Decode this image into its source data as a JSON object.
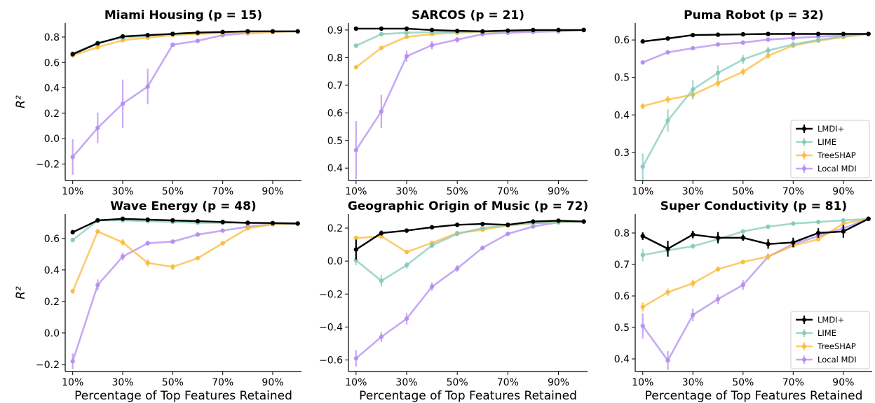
{
  "chart_data": [
    {
      "type": "line",
      "title": "Miami Housing (p = 15)",
      "ylabel": "R²",
      "xlabel": "",
      "x": [
        10,
        20,
        30,
        40,
        50,
        60,
        70,
        80,
        90,
        100
      ],
      "xticks": [
        "10%",
        "30%",
        "50%",
        "70%",
        "90%"
      ],
      "yticks": [
        "−0.2",
        "0.0",
        "0.2",
        "0.4",
        "0.6",
        "0.8"
      ],
      "ylim": [
        -0.33,
        0.91
      ],
      "legend": false,
      "series": [
        {
          "name": "LMDI+",
          "color": "#000000",
          "values": [
            0.665,
            0.75,
            0.805,
            0.815,
            0.825,
            0.835,
            0.84,
            0.845,
            0.845,
            0.845
          ],
          "err": [
            0.01,
            0.01,
            0.01,
            0.01,
            0.01,
            0.005,
            0.005,
            0.005,
            0.005,
            0.005
          ]
        },
        {
          "name": "LIME",
          "color": "#85c9bc",
          "values": [
            0.67,
            0.755,
            0.795,
            0.81,
            0.825,
            0.835,
            0.84,
            0.845,
            0.845,
            0.845
          ],
          "err": [
            0.01,
            0.01,
            0.01,
            0.01,
            0.005,
            0.005,
            0.005,
            0.005,
            0.005,
            0.005
          ]
        },
        {
          "name": "TreeSHAP",
          "color": "#fbbb3a",
          "values": [
            0.655,
            0.72,
            0.775,
            0.795,
            0.815,
            0.825,
            0.83,
            0.835,
            0.84,
            0.845
          ],
          "err": [
            0.01,
            0.01,
            0.01,
            0.01,
            0.01,
            0.005,
            0.005,
            0.005,
            0.005,
            0.005
          ]
        },
        {
          "name": "Local MDI",
          "color": "#b48cf2",
          "values": [
            -0.145,
            0.085,
            0.275,
            0.41,
            0.74,
            0.77,
            0.815,
            0.83,
            0.84,
            0.845
          ],
          "err": [
            0.14,
            0.12,
            0.19,
            0.14,
            0.01,
            0.01,
            0.01,
            0.005,
            0.005,
            0.005
          ]
        }
      ]
    },
    {
      "type": "line",
      "title": "SARCOS (p = 21)",
      "ylabel": "",
      "xlabel": "",
      "x": [
        10,
        20,
        30,
        40,
        50,
        60,
        70,
        80,
        90,
        100
      ],
      "xticks": [
        "10%",
        "30%",
        "50%",
        "70%",
        "90%"
      ],
      "yticks": [
        "0.4",
        "0.5",
        "0.6",
        "0.7",
        "0.8",
        "0.9"
      ],
      "ylim": [
        0.355,
        0.925
      ],
      "legend": false,
      "series": [
        {
          "name": "LMDI+",
          "color": "#000000",
          "values": [
            0.905,
            0.905,
            0.905,
            0.9,
            0.897,
            0.895,
            0.898,
            0.9,
            0.9,
            0.9
          ],
          "err": [
            0.003,
            0.003,
            0.003,
            0.003,
            0.003,
            0.003,
            0.003,
            0.003,
            0.003,
            0.003
          ]
        },
        {
          "name": "LIME",
          "color": "#85c9bc",
          "values": [
            0.843,
            0.885,
            0.89,
            0.892,
            0.893,
            0.894,
            0.895,
            0.897,
            0.898,
            0.9
          ],
          "err": [
            0.005,
            0.005,
            0.005,
            0.005,
            0.005,
            0.005,
            0.005,
            0.005,
            0.005,
            0.005
          ]
        },
        {
          "name": "TreeSHAP",
          "color": "#fbbb3a",
          "values": [
            0.765,
            0.835,
            0.875,
            0.885,
            0.89,
            0.893,
            0.895,
            0.897,
            0.898,
            0.9
          ],
          "err": [
            0.006,
            0.006,
            0.006,
            0.005,
            0.005,
            0.005,
            0.005,
            0.005,
            0.005,
            0.005
          ]
        },
        {
          "name": "Local MDI",
          "color": "#b48cf2",
          "values": [
            0.465,
            0.605,
            0.805,
            0.845,
            0.865,
            0.885,
            0.89,
            0.893,
            0.895,
            0.9
          ],
          "err": [
            0.105,
            0.06,
            0.02,
            0.015,
            0.01,
            0.008,
            0.005,
            0.005,
            0.005,
            0.005
          ]
        }
      ]
    },
    {
      "type": "line",
      "title": "Puma Robot (p = 32)",
      "ylabel": "",
      "xlabel": "",
      "x": [
        10,
        20,
        30,
        40,
        50,
        60,
        70,
        80,
        90,
        100
      ],
      "xticks": [
        "10%",
        "30%",
        "50%",
        "70%",
        "90%"
      ],
      "yticks": [
        "0.3",
        "0.4",
        "0.5",
        "0.6"
      ],
      "ylim": [
        0.225,
        0.645
      ],
      "legend": true,
      "series": [
        {
          "name": "LMDI+",
          "color": "#000000",
          "values": [
            0.596,
            0.604,
            0.613,
            0.614,
            0.615,
            0.616,
            0.616,
            0.616,
            0.616,
            0.616
          ],
          "err": [
            0.004,
            0.004,
            0.003,
            0.003,
            0.003,
            0.003,
            0.003,
            0.003,
            0.003,
            0.003
          ]
        },
        {
          "name": "LIME",
          "color": "#85c9bc",
          "values": [
            0.262,
            0.385,
            0.468,
            0.512,
            0.548,
            0.572,
            0.588,
            0.6,
            0.61,
            0.616
          ],
          "err": [
            0.035,
            0.03,
            0.025,
            0.02,
            0.012,
            0.01,
            0.008,
            0.006,
            0.005,
            0.003
          ]
        },
        {
          "name": "TreeSHAP",
          "color": "#fbbb3a",
          "values": [
            0.423,
            0.441,
            0.454,
            0.485,
            0.515,
            0.558,
            0.585,
            0.598,
            0.608,
            0.616
          ],
          "err": [
            0.008,
            0.01,
            0.012,
            0.01,
            0.01,
            0.008,
            0.006,
            0.005,
            0.004,
            0.003
          ]
        },
        {
          "name": "Local MDI",
          "color": "#b48cf2",
          "values": [
            0.54,
            0.567,
            0.578,
            0.588,
            0.593,
            0.601,
            0.605,
            0.609,
            0.612,
            0.616
          ],
          "err": [
            0.005,
            0.005,
            0.005,
            0.005,
            0.005,
            0.004,
            0.004,
            0.004,
            0.003,
            0.003
          ]
        }
      ]
    },
    {
      "type": "line",
      "title": "Wave Energy (p = 48)",
      "ylabel": "R²",
      "xlabel": "Percentage of Top Features Retained",
      "x": [
        10,
        20,
        30,
        40,
        50,
        60,
        70,
        80,
        90,
        100
      ],
      "xticks": [
        "10%",
        "30%",
        "50%",
        "70%",
        "90%"
      ],
      "yticks": [
        "−0.2",
        "0.0",
        "0.2",
        "0.4",
        "0.6"
      ],
      "ylim": [
        -0.245,
        0.755
      ],
      "legend": false,
      "series": [
        {
          "name": "LMDI+",
          "color": "#000000",
          "values": [
            0.64,
            0.715,
            0.725,
            0.72,
            0.715,
            0.71,
            0.705,
            0.7,
            0.698,
            0.695
          ],
          "err": [
            0.005,
            0.005,
            0.005,
            0.005,
            0.005,
            0.005,
            0.005,
            0.005,
            0.005,
            0.005
          ]
        },
        {
          "name": "LIME",
          "color": "#85c9bc",
          "values": [
            0.59,
            0.715,
            0.715,
            0.71,
            0.705,
            0.7,
            0.7,
            0.698,
            0.696,
            0.695
          ],
          "err": [
            0.01,
            0.01,
            0.008,
            0.008,
            0.006,
            0.005,
            0.005,
            0.005,
            0.005,
            0.005
          ]
        },
        {
          "name": "TreeSHAP",
          "color": "#fbbb3a",
          "values": [
            0.265,
            0.645,
            0.575,
            0.445,
            0.42,
            0.475,
            0.57,
            0.665,
            0.69,
            0.695
          ],
          "err": [
            0.015,
            0.01,
            0.02,
            0.025,
            0.02,
            0.01,
            0.01,
            0.008,
            0.005,
            0.005
          ]
        },
        {
          "name": "Local MDI",
          "color": "#b48cf2",
          "values": [
            -0.18,
            0.305,
            0.485,
            0.57,
            0.58,
            0.625,
            0.65,
            0.675,
            0.69,
            0.695
          ],
          "err": [
            0.05,
            0.035,
            0.025,
            0.015,
            0.01,
            0.01,
            0.008,
            0.005,
            0.005,
            0.005
          ]
        }
      ]
    },
    {
      "type": "line",
      "title": "Geographic Origin of Music (p = 72)",
      "ylabel": "",
      "xlabel": "Percentage of Top Features Retained",
      "x": [
        10,
        20,
        30,
        40,
        50,
        60,
        70,
        80,
        90,
        100
      ],
      "xticks": [
        "10%",
        "30%",
        "50%",
        "70%",
        "90%"
      ],
      "yticks": [
        "−0.6",
        "−0.4",
        "−0.2",
        "0.0",
        "0.2"
      ],
      "ylim": [
        -0.67,
        0.285
      ],
      "legend": false,
      "series": [
        {
          "name": "LMDI+",
          "color": "#000000",
          "values": [
            0.07,
            0.17,
            0.185,
            0.205,
            0.22,
            0.225,
            0.22,
            0.24,
            0.245,
            0.24
          ],
          "err": [
            0.06,
            0.015,
            0.01,
            0.008,
            0.006,
            0.005,
            0.005,
            0.005,
            0.005,
            0.005
          ]
        },
        {
          "name": "LIME",
          "color": "#85c9bc",
          "values": [
            0.005,
            -0.12,
            -0.025,
            0.095,
            0.165,
            0.2,
            0.22,
            0.23,
            0.235,
            0.24
          ],
          "err": [
            0.03,
            0.035,
            0.02,
            0.015,
            0.01,
            0.008,
            0.006,
            0.005,
            0.005,
            0.005
          ]
        },
        {
          "name": "TreeSHAP",
          "color": "#fbbb3a",
          "values": [
            0.14,
            0.15,
            0.055,
            0.11,
            0.17,
            0.19,
            0.215,
            0.23,
            0.235,
            0.24
          ],
          "err": [
            0.01,
            0.01,
            0.01,
            0.01,
            0.008,
            0.006,
            0.005,
            0.005,
            0.005,
            0.005
          ]
        },
        {
          "name": "Local MDI",
          "color": "#b48cf2",
          "values": [
            -0.59,
            -0.46,
            -0.35,
            -0.155,
            -0.045,
            0.08,
            0.165,
            0.21,
            0.235,
            0.24
          ],
          "err": [
            0.05,
            0.03,
            0.035,
            0.025,
            0.02,
            0.01,
            0.008,
            0.006,
            0.005,
            0.005
          ]
        }
      ]
    },
    {
      "type": "line",
      "title": "Super Conductivity (p = 81)",
      "ylabel": "",
      "xlabel": "Percentage of Top Features Retained",
      "x": [
        10,
        20,
        30,
        40,
        50,
        60,
        70,
        80,
        90,
        100
      ],
      "xticks": [
        "10%",
        "30%",
        "50%",
        "70%",
        "90%"
      ],
      "yticks": [
        "0.4",
        "0.5",
        "0.6",
        "0.7",
        "0.8"
      ],
      "ylim": [
        0.36,
        0.86
      ],
      "legend": true,
      "series": [
        {
          "name": "LMDI+",
          "color": "#000000",
          "values": [
            0.79,
            0.75,
            0.795,
            0.785,
            0.785,
            0.765,
            0.77,
            0.8,
            0.805,
            0.845
          ],
          "err": [
            0.012,
            0.025,
            0.012,
            0.018,
            0.01,
            0.015,
            0.015,
            0.015,
            0.02,
            0.005
          ]
        },
        {
          "name": "LIME",
          "color": "#85c9bc",
          "values": [
            0.73,
            0.745,
            0.758,
            0.78,
            0.805,
            0.82,
            0.83,
            0.835,
            0.84,
            0.845
          ],
          "err": [
            0.02,
            0.012,
            0.008,
            0.006,
            0.005,
            0.005,
            0.005,
            0.005,
            0.005,
            0.005
          ]
        },
        {
          "name": "TreeSHAP",
          "color": "#fbbb3a",
          "values": [
            0.565,
            0.612,
            0.64,
            0.685,
            0.708,
            0.725,
            0.76,
            0.78,
            0.83,
            0.845
          ],
          "err": [
            0.015,
            0.012,
            0.012,
            0.008,
            0.006,
            0.006,
            0.006,
            0.006,
            0.006,
            0.005
          ]
        },
        {
          "name": "Local MDI",
          "color": "#b48cf2",
          "values": [
            0.505,
            0.395,
            0.54,
            0.59,
            0.635,
            0.725,
            0.765,
            0.79,
            0.815,
            0.845
          ],
          "err": [
            0.04,
            0.03,
            0.02,
            0.015,
            0.015,
            0.01,
            0.008,
            0.006,
            0.006,
            0.005
          ]
        }
      ]
    }
  ]
}
